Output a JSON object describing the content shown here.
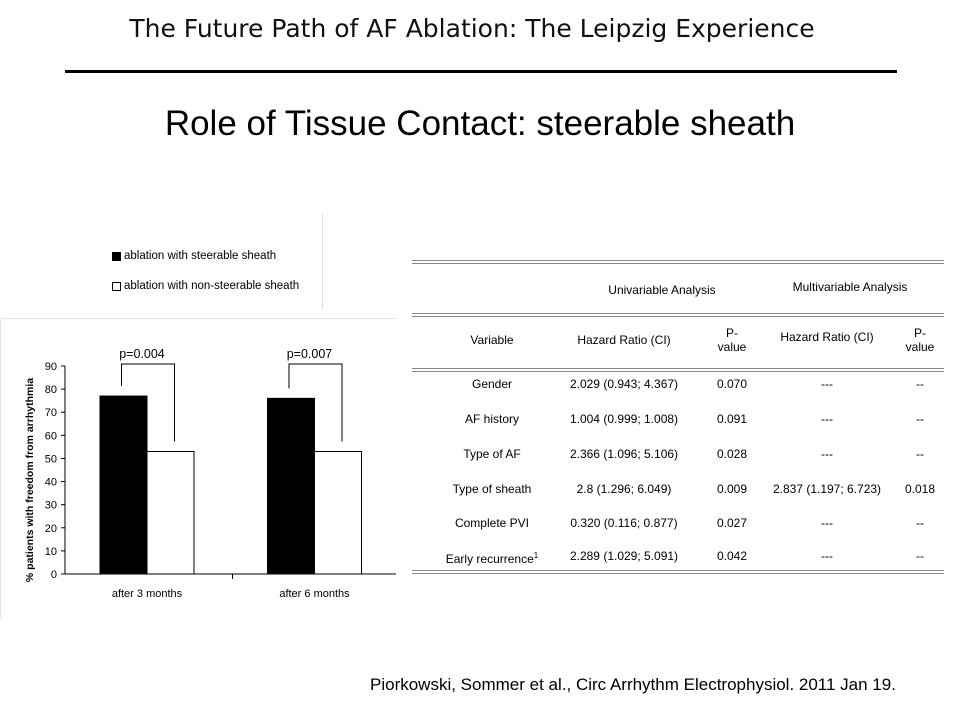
{
  "header": {
    "title": "The Future Path of AF Ablation: The Leipzig Experience"
  },
  "slide_title": "Role of Tissue Contact: steerable sheath",
  "legend": {
    "items": [
      {
        "label": "ablation with steerable sheath",
        "color": "#000000"
      },
      {
        "label": "ablation with non-steerable sheath",
        "color": "#ffffff"
      }
    ]
  },
  "chart_data": {
    "type": "bar",
    "categories": [
      "after 3 months",
      "after 6 months"
    ],
    "series": [
      {
        "name": "ablation with steerable sheath",
        "values": [
          77,
          76
        ],
        "color": "#000000"
      },
      {
        "name": "ablation with non-steerable sheath",
        "values": [
          53,
          53
        ],
        "color": "#ffffff"
      }
    ],
    "ylabel": "% patients with freedom from arrhythmia",
    "xlabel": "",
    "ylim": [
      0,
      90
    ],
    "yticks": [
      0,
      10,
      20,
      30,
      40,
      50,
      60,
      70,
      80,
      90
    ],
    "annotations": [
      "p=0.004",
      "p=0.007"
    ],
    "grid": false,
    "legend_position": "top-left"
  },
  "table": {
    "group_headers": [
      "Univariable Analysis",
      "Multivariable Analysis"
    ],
    "columns": [
      "Variable",
      "Hazard Ratio (CI)",
      "P-\nvalue",
      "Hazard Ratio (CI)",
      "P-\nvalue"
    ],
    "rows": [
      [
        "Gender",
        "2.029 (0.943; 4.367)",
        "0.070",
        "---",
        "--"
      ],
      [
        "AF history",
        "1.004 (0.999; 1.008)",
        "0.091",
        "---",
        "--"
      ],
      [
        "Type of AF",
        "2.366 (1.096; 5.106)",
        "0.028",
        "---",
        "--"
      ],
      [
        "Type of sheath",
        "2.8 (1.296; 6.049)",
        "0.009",
        "2.837 (1.197; 6.723)",
        "0.018"
      ],
      [
        "Complete PVI",
        "0.320 (0.116; 0.877)",
        "0.027",
        "---",
        "--"
      ],
      [
        "Early recurrence",
        "2.289 (1.029; 5.091)",
        "0.042",
        "---",
        "--"
      ]
    ],
    "footnote_mark": "1"
  },
  "citation": "Piorkowski, Sommer et al., Circ Arrhythm Electrophysiol. 2011 Jan 19."
}
